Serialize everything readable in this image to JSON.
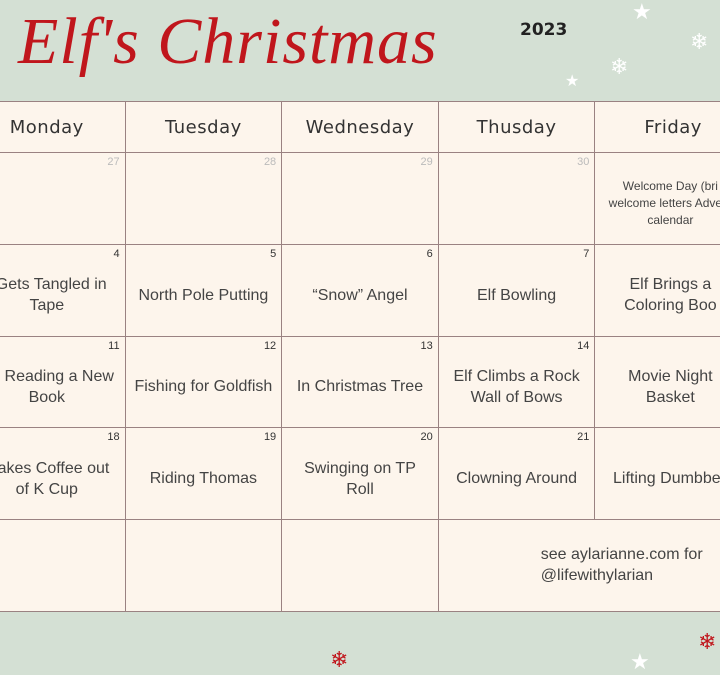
{
  "header": {
    "title": "Elf's Christmas",
    "year": "2023"
  },
  "days": [
    "Monday",
    "Tuesday",
    "Wednesday",
    "Thusday",
    "Friday"
  ],
  "rows": [
    [
      {
        "n": "27",
        "t": "",
        "dim": true
      },
      {
        "n": "28",
        "t": "",
        "dim": true
      },
      {
        "n": "29",
        "t": "",
        "dim": true
      },
      {
        "n": "30",
        "t": "",
        "dim": true
      },
      {
        "n": "",
        "t": "Welcome Day (bri welcome letters Advent calendar",
        "small": true
      }
    ],
    [
      {
        "n": "4",
        "t": "f Gets Tangled in Tape"
      },
      {
        "n": "5",
        "t": "North Pole Putting"
      },
      {
        "n": "6",
        "t": "“Snow” Angel"
      },
      {
        "n": "7",
        "t": "Elf Bowling"
      },
      {
        "n": "",
        "t": "Elf Brings a Coloring Boo"
      }
    ],
    [
      {
        "n": "11",
        "t": "f is Reading a New Book"
      },
      {
        "n": "12",
        "t": "Fishing for Goldfish"
      },
      {
        "n": "13",
        "t": "In Christmas Tree"
      },
      {
        "n": "14",
        "t": "Elf Climbs a Rock Wall of Bows"
      },
      {
        "n": "",
        "t": "Movie Night Basket"
      }
    ],
    [
      {
        "n": "18",
        "t": "Makes Coffee out of K Cup"
      },
      {
        "n": "19",
        "t": "Riding Thomas"
      },
      {
        "n": "20",
        "t": "Swinging on TP Roll"
      },
      {
        "n": "21",
        "t": "Clowning Around"
      },
      {
        "n": "",
        "t": "Lifting Dumbbell"
      }
    ],
    [
      {
        "n": "",
        "t": ""
      },
      {
        "n": "",
        "t": ""
      },
      {
        "n": "",
        "t": ""
      },
      {
        "n": "",
        "t": ""
      },
      {
        "n": "",
        "t": ""
      }
    ]
  ],
  "footer": {
    "line1": "see aylarianne.com for",
    "line2": "@lifewithylarian"
  },
  "colors": {
    "accent": "#c0161c",
    "background": "#d4e0d4",
    "cell": "#fdf5ec"
  }
}
